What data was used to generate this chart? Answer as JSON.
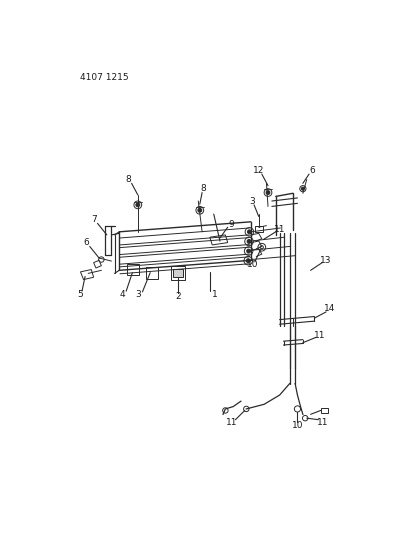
{
  "header_text": "4107 1215",
  "background_color": "#ffffff",
  "line_color": "#2a2a2a",
  "text_color": "#1a1a1a",
  "fig_width": 4.08,
  "fig_height": 5.33,
  "dpi": 100
}
